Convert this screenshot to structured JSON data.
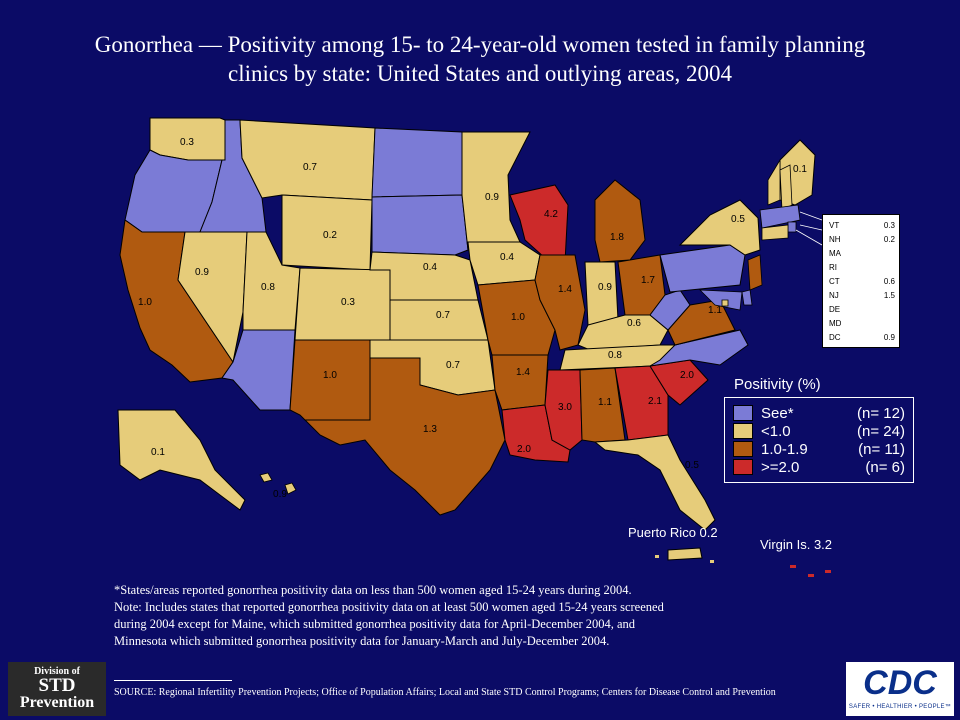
{
  "title": {
    "line1": "Gonorrhea — Positivity among 15- to 24-year-old women tested in family planning",
    "line2": "clinics by state: United States and outlying areas, 2004"
  },
  "colors": {
    "background": "#0b0b66",
    "see": "#7b7bd6",
    "lt1": "#e6cc7a",
    "mid": "#b05a10",
    "high": "#cc2a2a"
  },
  "states": [
    {
      "id": "WA",
      "cat": "lt1",
      "value": "0.3"
    },
    {
      "id": "OR",
      "cat": "see",
      "value": ""
    },
    {
      "id": "CA",
      "cat": "mid",
      "value": "1.0"
    },
    {
      "id": "ID",
      "cat": "see",
      "value": ""
    },
    {
      "id": "NV",
      "cat": "lt1",
      "value": "0.9"
    },
    {
      "id": "MT",
      "cat": "lt1",
      "value": "0.7"
    },
    {
      "id": "WY",
      "cat": "lt1",
      "value": "0.2"
    },
    {
      "id": "UT",
      "cat": "lt1",
      "value": "0.8"
    },
    {
      "id": "AZ",
      "cat": "see",
      "value": ""
    },
    {
      "id": "CO",
      "cat": "lt1",
      "value": "0.3"
    },
    {
      "id": "NM",
      "cat": "mid",
      "value": "1.0"
    },
    {
      "id": "ND",
      "cat": "see",
      "value": ""
    },
    {
      "id": "SD",
      "cat": "see",
      "value": ""
    },
    {
      "id": "NE",
      "cat": "lt1",
      "value": "0.4"
    },
    {
      "id": "KS",
      "cat": "lt1",
      "value": "0.7"
    },
    {
      "id": "OK",
      "cat": "lt1",
      "value": "0.7"
    },
    {
      "id": "TX",
      "cat": "mid",
      "value": "1.3"
    },
    {
      "id": "MN",
      "cat": "lt1",
      "value": "0.9"
    },
    {
      "id": "IA",
      "cat": "lt1",
      "value": "0.4"
    },
    {
      "id": "MO",
      "cat": "mid",
      "value": "1.0"
    },
    {
      "id": "AR",
      "cat": "mid",
      "value": "1.4"
    },
    {
      "id": "LA",
      "cat": "high",
      "value": "2.0"
    },
    {
      "id": "WI",
      "cat": "high",
      "value": "4.2"
    },
    {
      "id": "IL",
      "cat": "mid",
      "value": "1.4"
    },
    {
      "id": "MI",
      "cat": "mid",
      "value": "1.8"
    },
    {
      "id": "IN",
      "cat": "lt1",
      "value": "0.9"
    },
    {
      "id": "OH",
      "cat": "mid",
      "value": "1.7"
    },
    {
      "id": "KY",
      "cat": "lt1",
      "value": "0.6"
    },
    {
      "id": "TN",
      "cat": "lt1",
      "value": "0.8"
    },
    {
      "id": "MS",
      "cat": "high",
      "value": "3.0"
    },
    {
      "id": "AL",
      "cat": "mid",
      "value": "1.1"
    },
    {
      "id": "GA",
      "cat": "high",
      "value": "2.1"
    },
    {
      "id": "FL",
      "cat": "lt1",
      "value": "0.5"
    },
    {
      "id": "SC",
      "cat": "high",
      "value": "2.0"
    },
    {
      "id": "NC",
      "cat": "see",
      "value": ""
    },
    {
      "id": "VA",
      "cat": "mid",
      "value": "1.1"
    },
    {
      "id": "WV",
      "cat": "see",
      "value": ""
    },
    {
      "id": "PA",
      "cat": "see",
      "value": ""
    },
    {
      "id": "NY",
      "cat": "lt1",
      "value": "0.5"
    },
    {
      "id": "ME",
      "cat": "lt1",
      "value": "0.1"
    },
    {
      "id": "AK",
      "cat": "lt1",
      "value": "0.1"
    },
    {
      "id": "HI",
      "cat": "lt1",
      "value": "0.9"
    }
  ],
  "inset_states": [
    {
      "abbr": "VT",
      "value": "0.3"
    },
    {
      "abbr": "NH",
      "value": "0.2"
    },
    {
      "abbr": "MA",
      "value": ""
    },
    {
      "abbr": "RI",
      "value": ""
    },
    {
      "abbr": "CT",
      "value": "0.6"
    },
    {
      "abbr": "NJ",
      "value": "1.5"
    },
    {
      "abbr": "DE",
      "value": ""
    },
    {
      "abbr": "MD",
      "value": ""
    },
    {
      "abbr": "DC",
      "value": "0.9"
    }
  ],
  "legend": {
    "title": "Positivity (%)",
    "items": [
      {
        "label": "See*",
        "count": "(n= 12)",
        "cat": "see"
      },
      {
        "label": "<1.0",
        "count": "(n= 24)",
        "cat": "lt1"
      },
      {
        "label": "1.0-1.9",
        "count": "(n= 11)",
        "cat": "mid"
      },
      {
        "label": ">=2.0",
        "count": "(n=  6)",
        "cat": "high"
      }
    ]
  },
  "territories": {
    "puerto_rico": "Puerto Rico 0.2",
    "virgin_islands": "Virgin Is. 3.2"
  },
  "footnote": {
    "line1": "*States/areas reported gonorrhea positivity data on less than 500 women aged 15-24 years during 2004.",
    "line2": "Note: Includes states that reported gonorrhea positivity data on at least 500 women aged 15-24 years screened",
    "line3": "during 2004 except for Maine, which submitted gonorrhea positivity data for April-December 2004, and",
    "line4": "Minnesota which submitted gonorrhea positivity data for January-March and July-December 2004."
  },
  "source": "SOURCE: Regional Infertility Prevention Projects; Office of Population Affairs; Local and State STD Control Programs; Centers for Disease Control and Prevention",
  "logo_std": {
    "line1": "Division of",
    "line2": "STD",
    "line3": "Prevention"
  },
  "logo_cdc": {
    "main": "CDC",
    "tagline": "SAFER • HEALTHIER • PEOPLE™"
  }
}
